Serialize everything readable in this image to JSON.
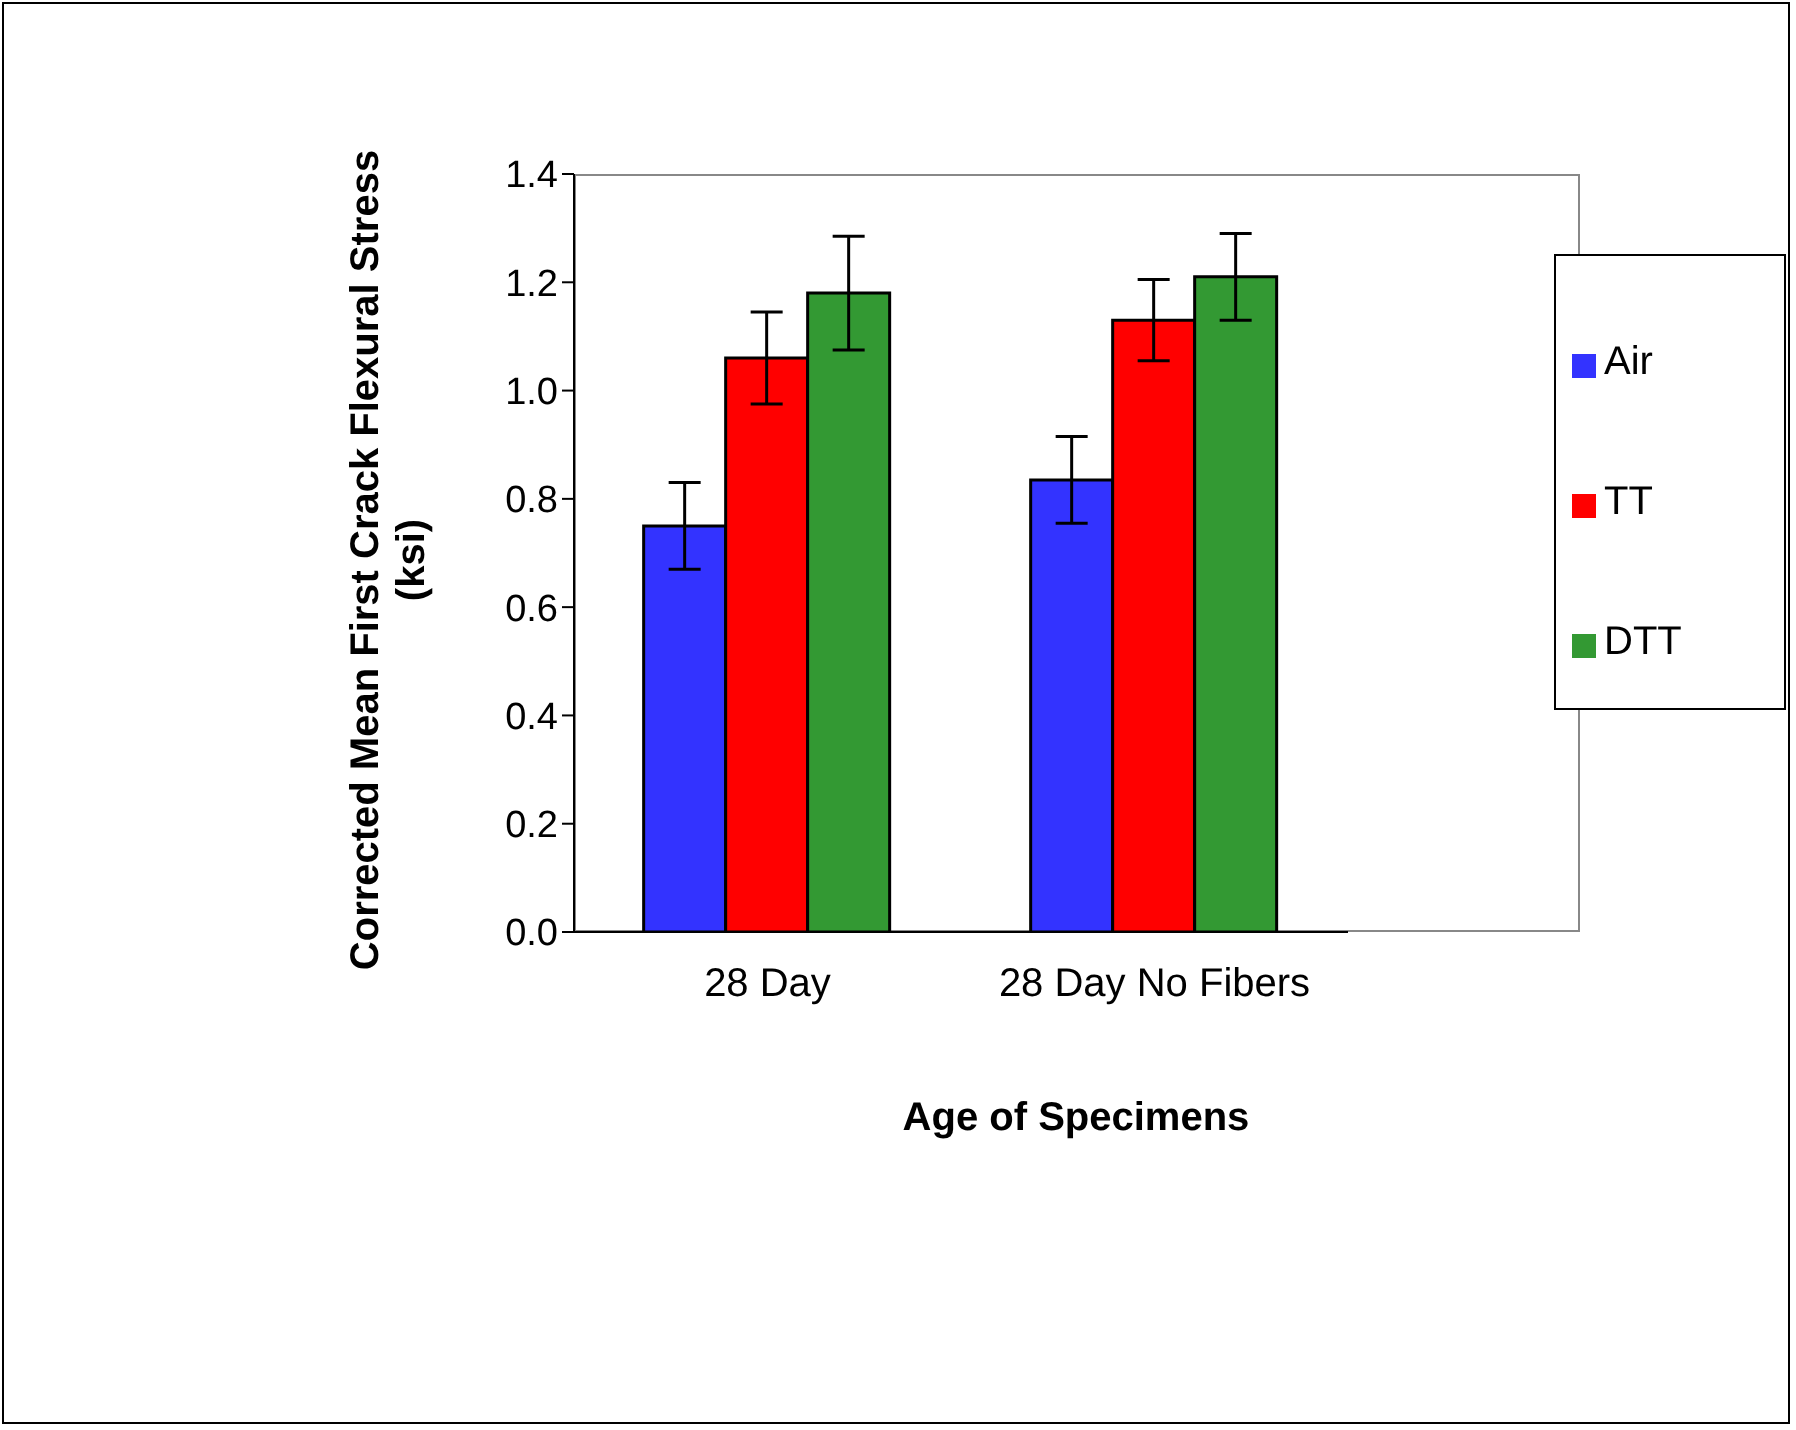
{
  "chart_data": {
    "type": "bar",
    "xlabel": "Age of Specimens",
    "ylabel": "Corrected Mean First Crack Flexural Stress (ksi)",
    "categories": [
      "28 Day",
      "28 Day No Fibers"
    ],
    "series": [
      {
        "name": "Air",
        "color": "#3333ff",
        "values": [
          0.75,
          0.835
        ],
        "errors": [
          0.08,
          0.08
        ]
      },
      {
        "name": "TT",
        "color": "#ff0000",
        "values": [
          1.06,
          1.13
        ],
        "errors": [
          0.085,
          0.075
        ]
      },
      {
        "name": "DTT",
        "color": "#339933",
        "values": [
          1.18,
          1.21
        ],
        "errors": [
          0.105,
          0.08
        ]
      }
    ],
    "ylim": [
      0,
      1.4
    ],
    "yticks": [
      {
        "value": 0,
        "label": "0.0"
      },
      {
        "value": 0.2,
        "label": "0.2"
      },
      {
        "value": 0.4,
        "label": "0.4"
      },
      {
        "value": 0.6,
        "label": "0.6"
      },
      {
        "value": 0.8,
        "label": "0.8"
      },
      {
        "value": 1,
        "label": "1.0"
      },
      {
        "value": 1.2,
        "label": "1.2"
      },
      {
        "value": 1.4,
        "label": "1.4"
      }
    ],
    "legend": "right",
    "grid": false
  }
}
